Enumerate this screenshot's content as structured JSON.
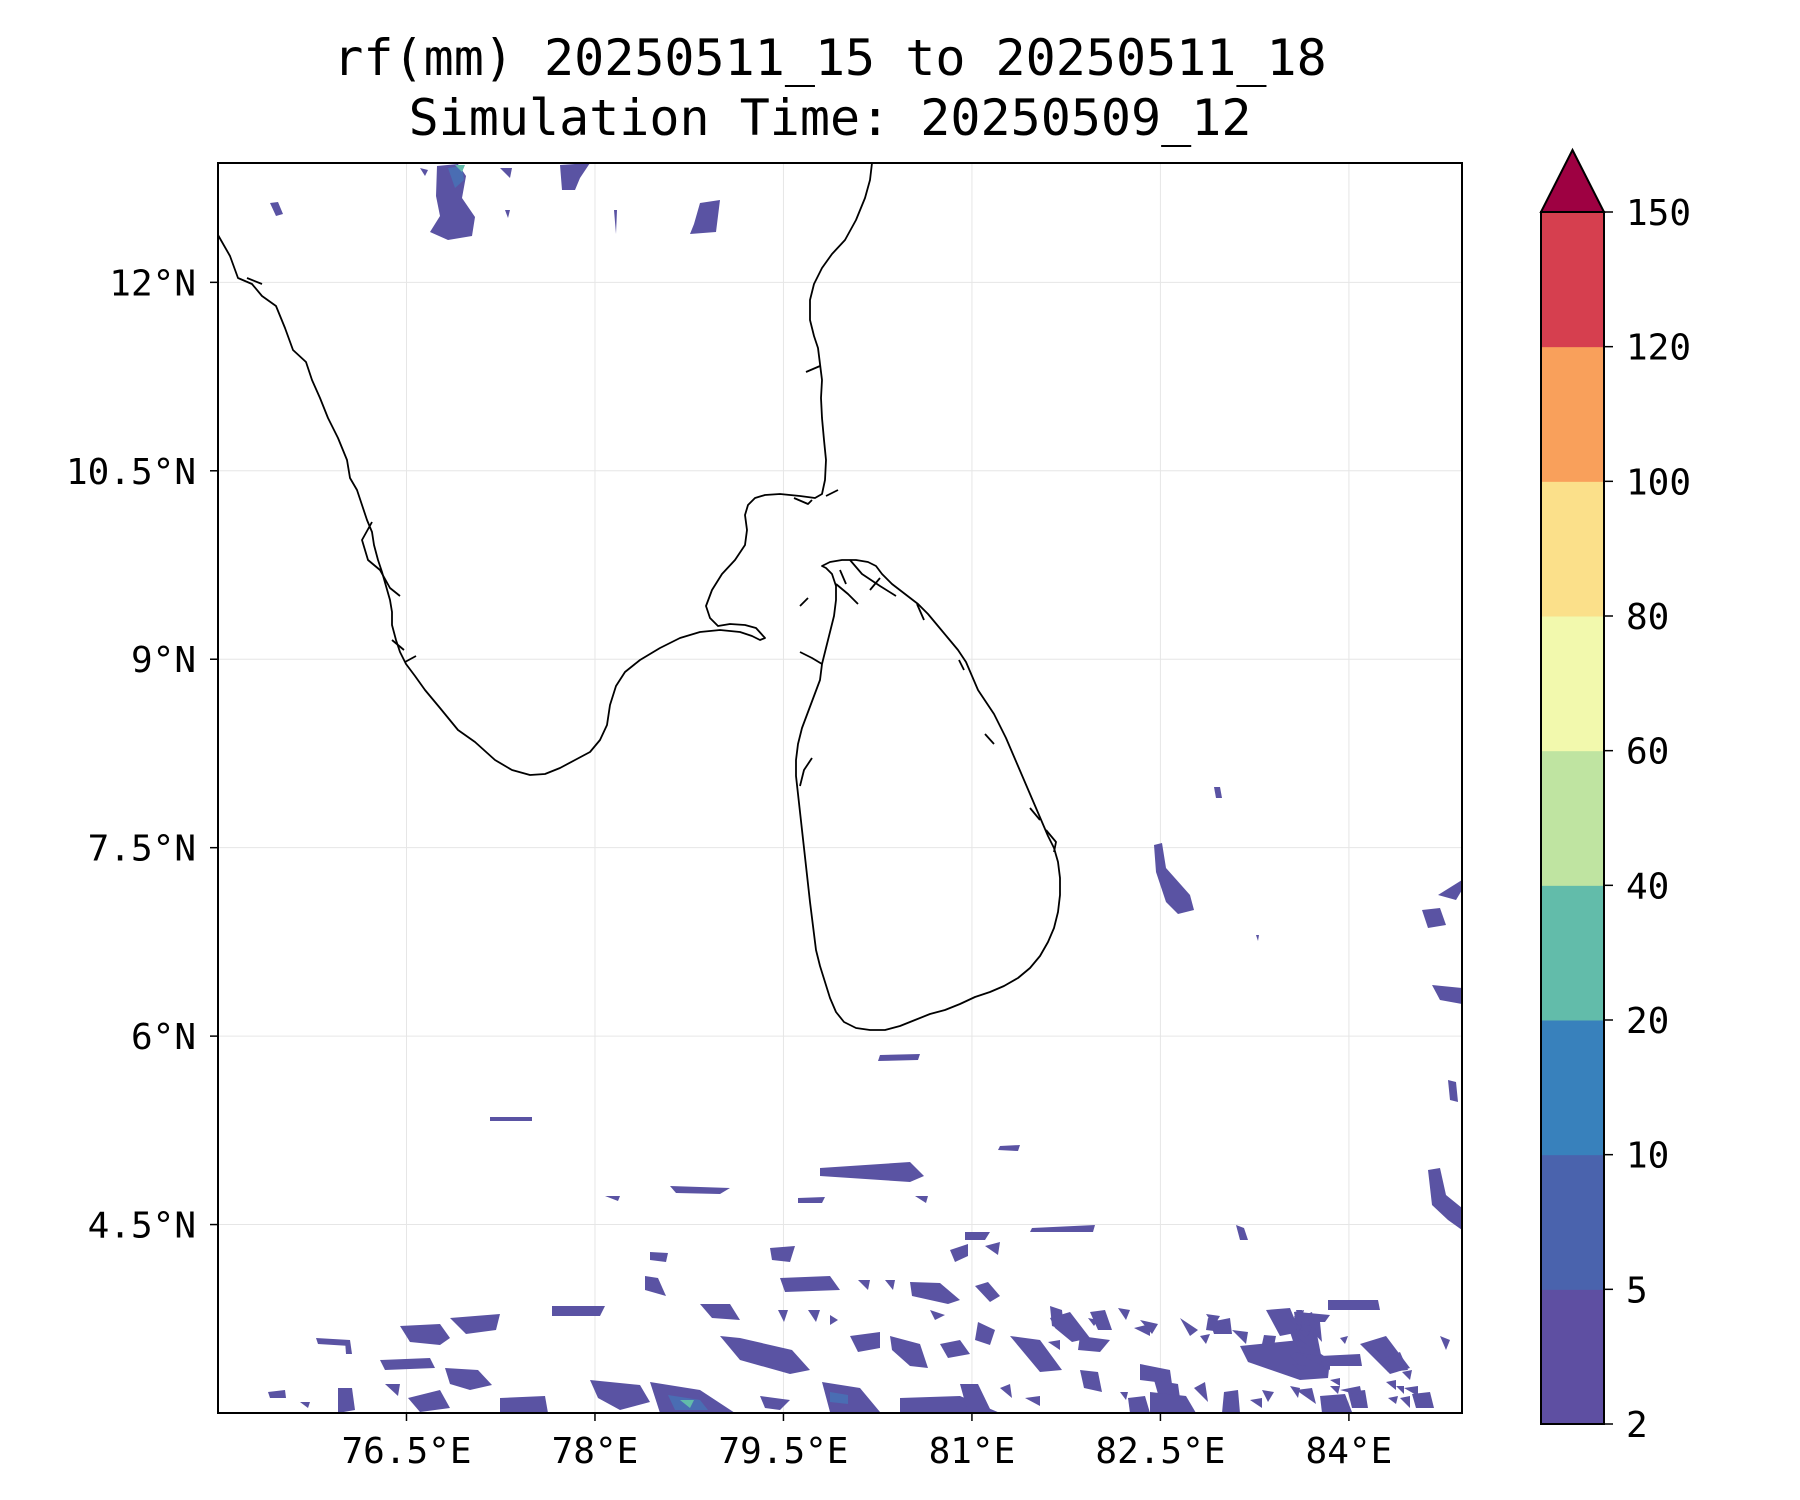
{
  "title": {
    "line1": "rf(mm) 20250511_15 to 20250511_18",
    "line2": "Simulation Time: 20250509_12"
  },
  "map": {
    "projection": "PlateCarree",
    "lon_range": [
      75.0,
      84.9
    ],
    "lat_range": [
      3.0,
      12.95
    ],
    "lon_ticks": [
      76.5,
      78,
      79.5,
      81,
      82.5,
      84
    ],
    "lon_tick_labels": [
      "76.5°E",
      "78°E",
      "79.5°E",
      "81°E",
      "82.5°E",
      "84°E"
    ],
    "lat_ticks": [
      4.5,
      6,
      7.5,
      9,
      10.5,
      12
    ],
    "lat_tick_labels": [
      "4.5°N",
      "6°N",
      "7.5°N",
      "9°N",
      "10.5°N",
      "12°N"
    ],
    "gridlines": true,
    "coastlines": true
  },
  "colorbar": {
    "levels": [
      2,
      5,
      10,
      20,
      40,
      60,
      80,
      100,
      120,
      150
    ],
    "tick_labels": [
      "2",
      "5",
      "10",
      "20",
      "40",
      "60",
      "80",
      "100",
      "120",
      "150"
    ],
    "colors": [
      "#5e4fa2",
      "#4a63ad",
      "#3881bc",
      "#62bcaa",
      "#bfe4a1",
      "#f2f9ad",
      "#fbe08a",
      "#f9a05b",
      "#d63f4f"
    ],
    "extend_color": "#9e0142",
    "extend": "max"
  },
  "colors": {
    "rain_low": "#5a53a3",
    "rain_mid": "#4a6db3",
    "rain_core": "#62bcaa",
    "coastline": "#000000",
    "grid": "#e6e6e6"
  }
}
